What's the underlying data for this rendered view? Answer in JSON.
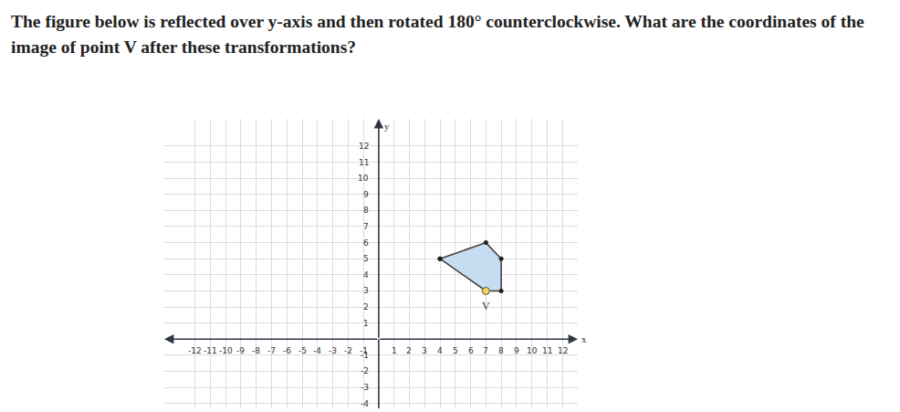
{
  "question": "The figure below is reflected over y-axis and then rotated 180° counterclockwise. What are the coordinates of the image of point V after these transformations?",
  "chart_data": {
    "type": "polygon",
    "x_label": "x",
    "y_label": "y",
    "xlim": [
      -14,
      13
    ],
    "ylim": [
      -4.3,
      13.7
    ],
    "xticks": [
      -12,
      -11,
      -10,
      -9,
      -8,
      -7,
      -6,
      -5,
      -4,
      -3,
      -2,
      -1,
      1,
      2,
      3,
      4,
      5,
      6,
      7,
      8,
      9,
      10,
      11,
      12
    ],
    "yticks": [
      -4,
      -3,
      -2,
      -1,
      1,
      2,
      3,
      4,
      5,
      6,
      7,
      8,
      9,
      10,
      11,
      12
    ],
    "grid": true,
    "polygon": {
      "x": [
        4,
        7,
        8,
        8,
        7
      ],
      "y": [
        5,
        6,
        5,
        3,
        3
      ],
      "color": "#c6ddf1"
    },
    "points": [
      {
        "label": "V",
        "x": 7,
        "y": 3,
        "color": "#f2d45c"
      }
    ]
  }
}
